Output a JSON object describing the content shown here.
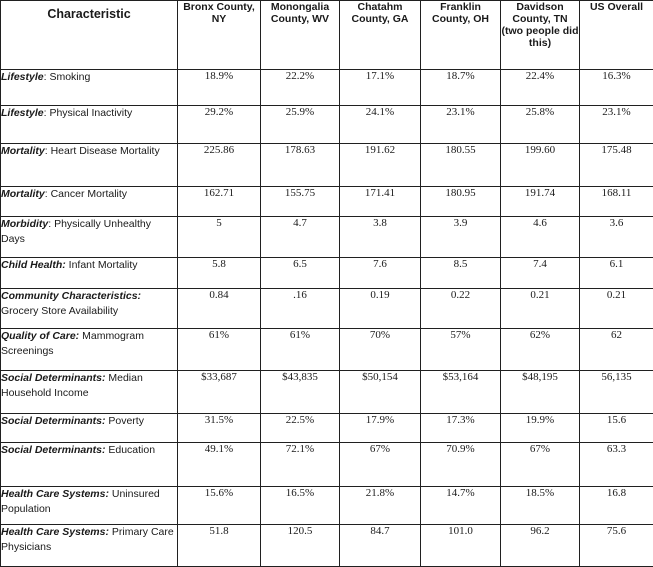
{
  "table": {
    "headers": [
      "Characteristic",
      "Bronx County, NY",
      "Monongalia County, WV",
      "Chatahm County, GA",
      "Franklin County, OH",
      "Davidson County, TN (two people did this)",
      "US Overall"
    ],
    "rows": [
      {
        "category": "Lifestyle",
        "rest": ": Smoking",
        "values": [
          "18.9%",
          "22.2%",
          "17.1%",
          "18.7%",
          "22.4%",
          "16.3%"
        ]
      },
      {
        "category": "Lifestyle",
        "rest": ":  Physical Inactivity",
        "values": [
          "29.2%",
          "25.9%",
          "24.1%",
          "23.1%",
          "25.8%",
          "23.1%"
        ]
      },
      {
        "category": "Mortality",
        "rest": ": Heart Disease Mortality",
        "values": [
          "225.86",
          "178.63",
          "191.62",
          "180.55",
          "199.60",
          "175.48"
        ]
      },
      {
        "category": "Mortality",
        "rest": ": Cancer Mortality",
        "values": [
          "162.71",
          "155.75",
          "171.41",
          "180.95",
          "191.74",
          "168.11"
        ]
      },
      {
        "category": "Morbidity",
        "rest": ": Physically Unhealthy Days",
        "values": [
          "5",
          "4.7",
          "3.8",
          "3.9",
          "4.6",
          "3.6"
        ]
      },
      {
        "category": "Child Health:",
        "rest": " Infant Mortality",
        "values": [
          "5.8",
          "6.5",
          "7.6",
          "8.5",
          "7.4",
          "6.1"
        ]
      },
      {
        "category": "Community Characteristics:",
        "rest": " Grocery Store Availability",
        "values": [
          "0.84",
          ".16",
          "0.19",
          "0.22",
          "0.21",
          "0.21"
        ]
      },
      {
        "category": "Quality of Care:",
        "rest": " Mammogram Screenings",
        "values": [
          "61%",
          "61%",
          "70%",
          "57%",
          "62%",
          "62"
        ]
      },
      {
        "category": "Social Determinants:",
        "rest": " Median Household Income",
        "values": [
          "$33,687",
          "$43,835",
          "$50,154",
          "$53,164",
          "$48,195",
          "56,135"
        ]
      },
      {
        "category": "Social Determinants:",
        "rest": " Poverty",
        "values": [
          "31.5%",
          "22.5%",
          "17.9%",
          "17.3%",
          "19.9%",
          "15.6"
        ]
      },
      {
        "category": "Social Determinants:",
        "rest": " Education",
        "values": [
          "49.1%",
          "72.1%",
          "67%",
          "70.9%",
          "67%",
          "63.3"
        ]
      },
      {
        "category": "Health Care Systems:",
        "rest": " Uninsured Population",
        "values": [
          "15.6%",
          "16.5%",
          "21.8%",
          "14.7%",
          "18.5%",
          "16.8"
        ]
      },
      {
        "category": "Health Care Systems:",
        "rest": " Primary Care Physicians",
        "values": [
          "51.8",
          "120.5",
          "84.7",
          "101.0",
          "96.2",
          "75.6"
        ]
      }
    ]
  }
}
